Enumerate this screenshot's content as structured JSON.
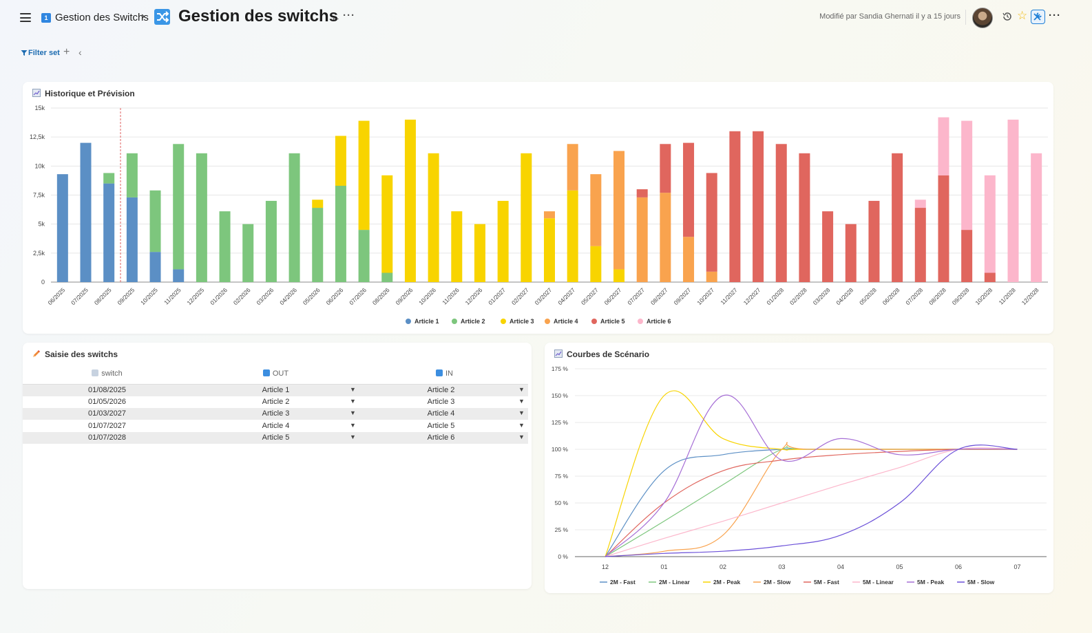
{
  "header": {
    "breadcrumb_label": "Gestion des Switchs",
    "breadcrumb_badge": "1",
    "title": "Gestion des switchs",
    "modified": "Modifié par Sandia Ghernati il y a 15 jours"
  },
  "filter": {
    "label": "Filter set"
  },
  "colors": {
    "Article 1": "#5b8fc5",
    "Article 2": "#7dc67d",
    "Article 3": "#f8d400",
    "Article 4": "#f9a34e",
    "Article 5": "#e0665e",
    "Article 6": "#fcb6cb",
    "link": "#1c6bb0"
  },
  "hist": {
    "title": "Historique et Prévision",
    "chart_data": {
      "type": "bar",
      "stacked": true,
      "ylim": [
        0,
        15000
      ],
      "yticks": [
        "0",
        "2,5k",
        "5k",
        "7,5k",
        "10k",
        "12,5k",
        "15k"
      ],
      "forecast_start_after": "08/2025",
      "legend_position": "bottom",
      "categories": [
        "06/2025",
        "07/2025",
        "08/2025",
        "09/2025",
        "10/2025",
        "11/2025",
        "12/2025",
        "01/2026",
        "02/2026",
        "03/2026",
        "04/2026",
        "05/2026",
        "06/2026",
        "07/2026",
        "08/2026",
        "09/2026",
        "10/2026",
        "11/2026",
        "12/2026",
        "01/2027",
        "02/2027",
        "03/2027",
        "04/2027",
        "05/2027",
        "06/2027",
        "07/2027",
        "08/2027",
        "09/2027",
        "10/2027",
        "11/2027",
        "12/2027",
        "01/2028",
        "02/2028",
        "03/2028",
        "04/2028",
        "05/2028",
        "06/2028",
        "07/2028",
        "08/2028",
        "09/2028",
        "10/2028",
        "11/2028",
        "12/2028"
      ],
      "series": [
        {
          "name": "Article 1",
          "values": [
            9300,
            12000,
            8500,
            7300,
            2600,
            1100,
            0,
            0,
            0,
            0,
            0,
            0,
            0,
            0,
            0,
            0,
            0,
            0,
            0,
            0,
            0,
            0,
            0,
            0,
            0,
            0,
            0,
            0,
            0,
            0,
            0,
            0,
            0,
            0,
            0,
            0,
            0,
            0,
            0,
            0,
            0,
            0,
            0
          ]
        },
        {
          "name": "Article 2",
          "values": [
            0,
            0,
            900,
            3800,
            5300,
            10800,
            11100,
            6100,
            5000,
            7000,
            11100,
            6400,
            8300,
            4500,
            800,
            0,
            0,
            0,
            0,
            0,
            0,
            0,
            0,
            0,
            0,
            0,
            0,
            0,
            0,
            0,
            0,
            0,
            0,
            0,
            0,
            0,
            0,
            0,
            0,
            0,
            0,
            0,
            0
          ]
        },
        {
          "name": "Article 3",
          "values": [
            0,
            0,
            0,
            0,
            0,
            0,
            0,
            0,
            0,
            0,
            0,
            700,
            4300,
            9400,
            8400,
            14000,
            11100,
            6100,
            5000,
            7000,
            11100,
            5500,
            7900,
            3100,
            1100,
            0,
            0,
            0,
            0,
            0,
            0,
            0,
            0,
            0,
            0,
            0,
            0,
            0,
            0,
            0,
            0,
            0,
            0
          ]
        },
        {
          "name": "Article 4",
          "values": [
            0,
            0,
            0,
            0,
            0,
            0,
            0,
            0,
            0,
            0,
            0,
            0,
            0,
            0,
            0,
            0,
            0,
            0,
            0,
            0,
            0,
            600,
            4000,
            6200,
            10200,
            7300,
            7700,
            3900,
            900,
            0,
            0,
            0,
            0,
            0,
            0,
            0,
            0,
            0,
            0,
            0,
            0,
            0,
            0
          ]
        },
        {
          "name": "Article 5",
          "values": [
            0,
            0,
            0,
            0,
            0,
            0,
            0,
            0,
            0,
            0,
            0,
            0,
            0,
            0,
            0,
            0,
            0,
            0,
            0,
            0,
            0,
            0,
            0,
            0,
            0,
            700,
            4200,
            8100,
            8500,
            13000,
            13000,
            11900,
            11100,
            6100,
            5000,
            7000,
            11100,
            6400,
            9200,
            4500,
            800,
            0,
            0
          ]
        },
        {
          "name": "Article 6",
          "values": [
            0,
            0,
            0,
            0,
            0,
            0,
            0,
            0,
            0,
            0,
            0,
            0,
            0,
            0,
            0,
            0,
            0,
            0,
            0,
            0,
            0,
            0,
            0,
            0,
            0,
            0,
            0,
            0,
            0,
            0,
            0,
            0,
            0,
            0,
            0,
            0,
            0,
            700,
            5000,
            9400,
            8400,
            14000,
            11100
          ]
        }
      ]
    }
  },
  "saisie": {
    "title": "Saisie des switchs",
    "columns": [
      "switch",
      "OUT",
      "IN"
    ],
    "rows": [
      {
        "switch": "01/08/2025",
        "out": "Article 1",
        "in": "Article 2"
      },
      {
        "switch": "01/05/2026",
        "out": "Article 2",
        "in": "Article 3"
      },
      {
        "switch": "01/03/2027",
        "out": "Article 3",
        "in": "Article 4"
      },
      {
        "switch": "01/07/2027",
        "out": "Article 4",
        "in": "Article 5"
      },
      {
        "switch": "01/07/2028",
        "out": "Article 5",
        "in": "Article 6"
      }
    ]
  },
  "courbes": {
    "title": "Courbes de Scénario",
    "chart_data": {
      "type": "line",
      "x": [
        "12",
        "01",
        "02",
        "03",
        "04",
        "05",
        "06",
        "07"
      ],
      "ylim": [
        0,
        175
      ],
      "yticks": [
        "0 %",
        "25 %",
        "50 %",
        "75 %",
        "100 %",
        "125 %",
        "150 %",
        "175 %"
      ],
      "legend_position": "bottom",
      "series": [
        {
          "name": "2M - Fast",
          "color": "#5b8fc5",
          "x": [
            0,
            1,
            2,
            3,
            3.5,
            7
          ],
          "values": [
            0,
            80,
            95,
            100,
            100,
            100
          ]
        },
        {
          "name": "2M - Linear",
          "color": "#7dc67d",
          "x": [
            0,
            1,
            2,
            3,
            3.5,
            7
          ],
          "values": [
            0,
            33,
            67,
            100,
            100,
            100
          ]
        },
        {
          "name": "2M - Peak",
          "color": "#f8d400",
          "x": [
            0,
            1,
            2,
            3,
            3.5,
            7
          ],
          "values": [
            0,
            150,
            110,
            100,
            100,
            100
          ]
        },
        {
          "name": "2M - Slow",
          "color": "#f9a34e",
          "x": [
            0,
            1,
            2,
            3,
            3.5,
            7
          ],
          "values": [
            0,
            5,
            20,
            100,
            100,
            100
          ]
        },
        {
          "name": "5M - Fast",
          "color": "#e0665e",
          "x": [
            0,
            1,
            2,
            3,
            4,
            5,
            6,
            7
          ],
          "values": [
            0,
            50,
            80,
            90,
            95,
            98,
            100,
            100
          ]
        },
        {
          "name": "5M - Linear",
          "color": "#fcb6cb",
          "x": [
            0,
            1,
            2,
            3,
            4,
            5,
            6,
            7
          ],
          "values": [
            0,
            17,
            33,
            50,
            67,
            83,
            100,
            100
          ]
        },
        {
          "name": "5M - Peak",
          "color": "#a66fd6",
          "x": [
            0,
            1,
            2,
            3,
            4,
            5,
            6,
            7
          ],
          "values": [
            0,
            50,
            150,
            90,
            110,
            95,
            100,
            100
          ]
        },
        {
          "name": "5M - Slow",
          "color": "#6a4fd8",
          "x": [
            0,
            1,
            2,
            3,
            4,
            5,
            6,
            7
          ],
          "values": [
            0,
            3,
            5,
            10,
            20,
            50,
            100,
            100
          ]
        }
      ]
    }
  }
}
